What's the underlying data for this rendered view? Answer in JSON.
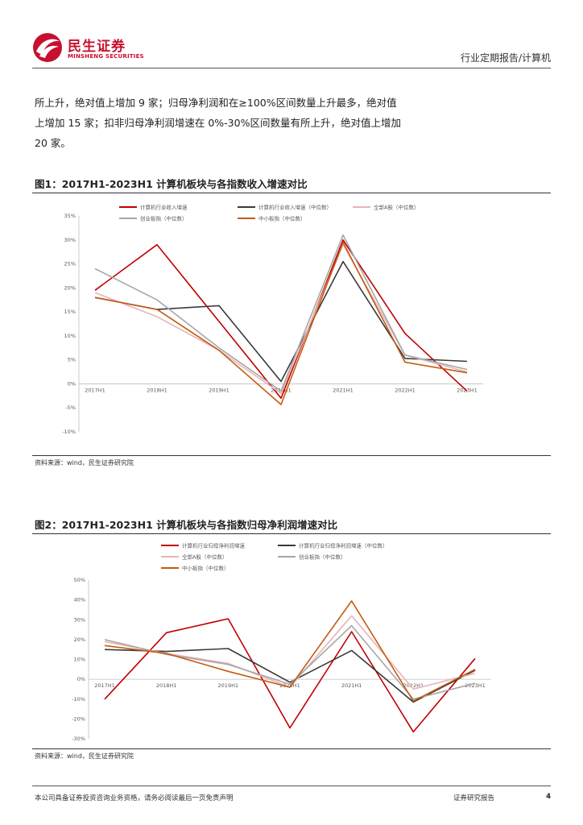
{
  "header": {
    "logo_cn": "民生证券",
    "logo_en": "MINSHENG SECURITIES",
    "breadcrumb": "行业定期报告/计算机"
  },
  "body": {
    "lines": [
      "所上升，绝对值上增加 9 家；归母净利润和在≥100%区间数量上升最多，绝对值",
      "上增加 15 家；扣非归母净利润增速在 0%-30%区间数量有所上升，绝对值上增加",
      "20 家。"
    ]
  },
  "figures": [
    {
      "title": "图1：2017H1-2023H1 计算机板块与各指数收入增速对比",
      "source": "资料来源：wind，民生证券研究院"
    },
    {
      "title": "图2：2017H1-2023H1 计算机板块与各指数归母净利润增速对比",
      "source": "资料来源：wind，民生证券研究院"
    }
  ],
  "chart_data": [
    {
      "type": "line",
      "title": "图1：2017H1-2023H1 计算机板块与各指数收入增速对比",
      "x": [
        "2017H1",
        "2018H1",
        "2019H1",
        "2020H1",
        "2021H1",
        "2022H1",
        "2023H1"
      ],
      "ylim": [
        -10,
        35
      ],
      "yticks": [
        "-10%",
        "-5%",
        "0%",
        "5%",
        "10%",
        "15%",
        "20%",
        "25%",
        "30%",
        "35%"
      ],
      "ytick_values": [
        -10,
        -5,
        0,
        5,
        10,
        15,
        20,
        25,
        30,
        35
      ],
      "legend_position": "top",
      "series": [
        {
          "name": "计算机行业收入增速",
          "color": "#c00000",
          "values": [
            19.5,
            29,
            13,
            -3,
            30,
            10.5,
            -1.5
          ]
        },
        {
          "name": "计算机行业收入增速（中位数）",
          "color": "#3a3a3a",
          "values": [
            18,
            15.5,
            16.3,
            0.5,
            25.5,
            5.3,
            4.7
          ]
        },
        {
          "name": "全部A股（中位数）",
          "color": "#e8b4b8",
          "values": [
            19,
            14,
            7,
            -2,
            29,
            6,
            2.5
          ]
        },
        {
          "name": "创业板指（中位数）",
          "color": "#a6a6a6",
          "values": [
            24,
            17.5,
            7.5,
            -1.5,
            31,
            6,
            3
          ]
        },
        {
          "name": "中小板指（中位数）",
          "color": "#c55a11",
          "values": [
            18,
            15.5,
            7,
            -4.3,
            29.5,
            4.5,
            2.3
          ]
        }
      ]
    },
    {
      "type": "line",
      "title": "图2：2017H1-2023H1 计算机板块与各指数归母净利润增速对比",
      "x": [
        "2017H1",
        "2018H1",
        "2019H1",
        "2020H1",
        "2021H1",
        "2022H1",
        "2023H1"
      ],
      "ylim": [
        -30,
        50
      ],
      "yticks": [
        "-30%",
        "-20%",
        "-10%",
        "0%",
        "10%",
        "20%",
        "30%",
        "40%",
        "50%"
      ],
      "ytick_values": [
        -30,
        -20,
        -10,
        0,
        10,
        20,
        30,
        40,
        50
      ],
      "legend_position": "top",
      "series": [
        {
          "name": "计算机行业归母净利润增速",
          "color": "#c00000",
          "values": [
            -10,
            23.5,
            30.5,
            -24.5,
            24,
            -26.5,
            10.5
          ]
        },
        {
          "name": "计算机行业归母净利润增速（中位数）",
          "color": "#3a3a3a",
          "values": [
            15,
            14,
            15.5,
            -1.5,
            14.5,
            -11.5,
            4.5
          ]
        },
        {
          "name": "全部A股（中位数）",
          "color": "#e8b4b8",
          "values": [
            19,
            13,
            8,
            -4,
            32,
            -5,
            3
          ]
        },
        {
          "name": "创业板指（中位数）",
          "color": "#a6a6a6",
          "values": [
            20,
            12.5,
            7.5,
            -2.5,
            27,
            -10,
            -2
          ]
        },
        {
          "name": "中小板指（中位数）",
          "color": "#c55a11",
          "values": [
            17,
            13,
            4,
            -4,
            39.5,
            -11,
            5
          ]
        }
      ]
    }
  ],
  "footer": {
    "disclaimer": "本公司具备证券投资咨询业务资格，请务必阅读最后一页免责声明",
    "report_type": "证券研究报告",
    "page": "4"
  },
  "colors": {
    "brand": "#c8102e"
  }
}
